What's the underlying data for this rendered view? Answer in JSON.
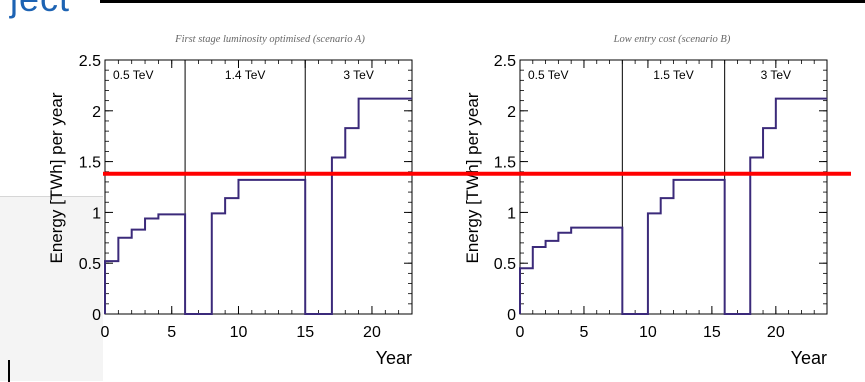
{
  "page": {
    "top_fragment": "ject",
    "highlight_color": "#ff0000",
    "line_color": "#3b2a7a"
  },
  "chart_data": [
    {
      "type": "line",
      "title": "First stage luminosity optimised (scenario A)",
      "xlabel": "Year",
      "ylabel": "Energy [TWh] per year",
      "xlim": [
        0,
        23
      ],
      "ylim": [
        0,
        2.5
      ],
      "x_ticks": [
        0,
        5,
        10,
        15,
        20
      ],
      "y_ticks": [
        0,
        0.5,
        1,
        1.5,
        2,
        2.5
      ],
      "stages": [
        {
          "label": "0.5 TeV",
          "x_start": 0,
          "x_end": 6
        },
        {
          "label": "1.4 TeV",
          "x_start": 6,
          "x_end": 15
        },
        {
          "label": "3 TeV",
          "x_start": 15,
          "x_end": 23
        }
      ],
      "step_x": [
        0,
        1,
        2,
        3,
        4,
        6,
        8,
        9,
        10,
        15,
        17,
        18,
        19,
        23
      ],
      "step_y": [
        0.52,
        0.75,
        0.83,
        0.94,
        0.98,
        0,
        0.99,
        1.14,
        1.32,
        0,
        1.54,
        1.83,
        2.12,
        2.12
      ],
      "grid": false,
      "highlight_line_y": 1.38
    },
    {
      "type": "line",
      "title": "Low entry cost (scenario B)",
      "xlabel": "Year",
      "ylabel": "Energy [TWh] per year",
      "xlim": [
        0,
        24
      ],
      "ylim": [
        0,
        2.5
      ],
      "x_ticks": [
        0,
        5,
        10,
        15,
        20
      ],
      "y_ticks": [
        0,
        0.5,
        1,
        1.5,
        2,
        2.5
      ],
      "stages": [
        {
          "label": "0.5 TeV",
          "x_start": 0,
          "x_end": 8
        },
        {
          "label": "1.5 TeV",
          "x_start": 8,
          "x_end": 16
        },
        {
          "label": "3 TeV",
          "x_start": 16,
          "x_end": 24
        }
      ],
      "step_x": [
        0,
        1,
        2,
        3,
        4,
        8,
        10,
        11,
        12,
        16,
        18,
        19,
        20,
        24
      ],
      "step_y": [
        0.45,
        0.66,
        0.72,
        0.8,
        0.85,
        0,
        0.99,
        1.14,
        1.32,
        0,
        1.54,
        1.83,
        2.12,
        2.12
      ],
      "grid": false,
      "highlight_line_y": 1.38
    }
  ]
}
